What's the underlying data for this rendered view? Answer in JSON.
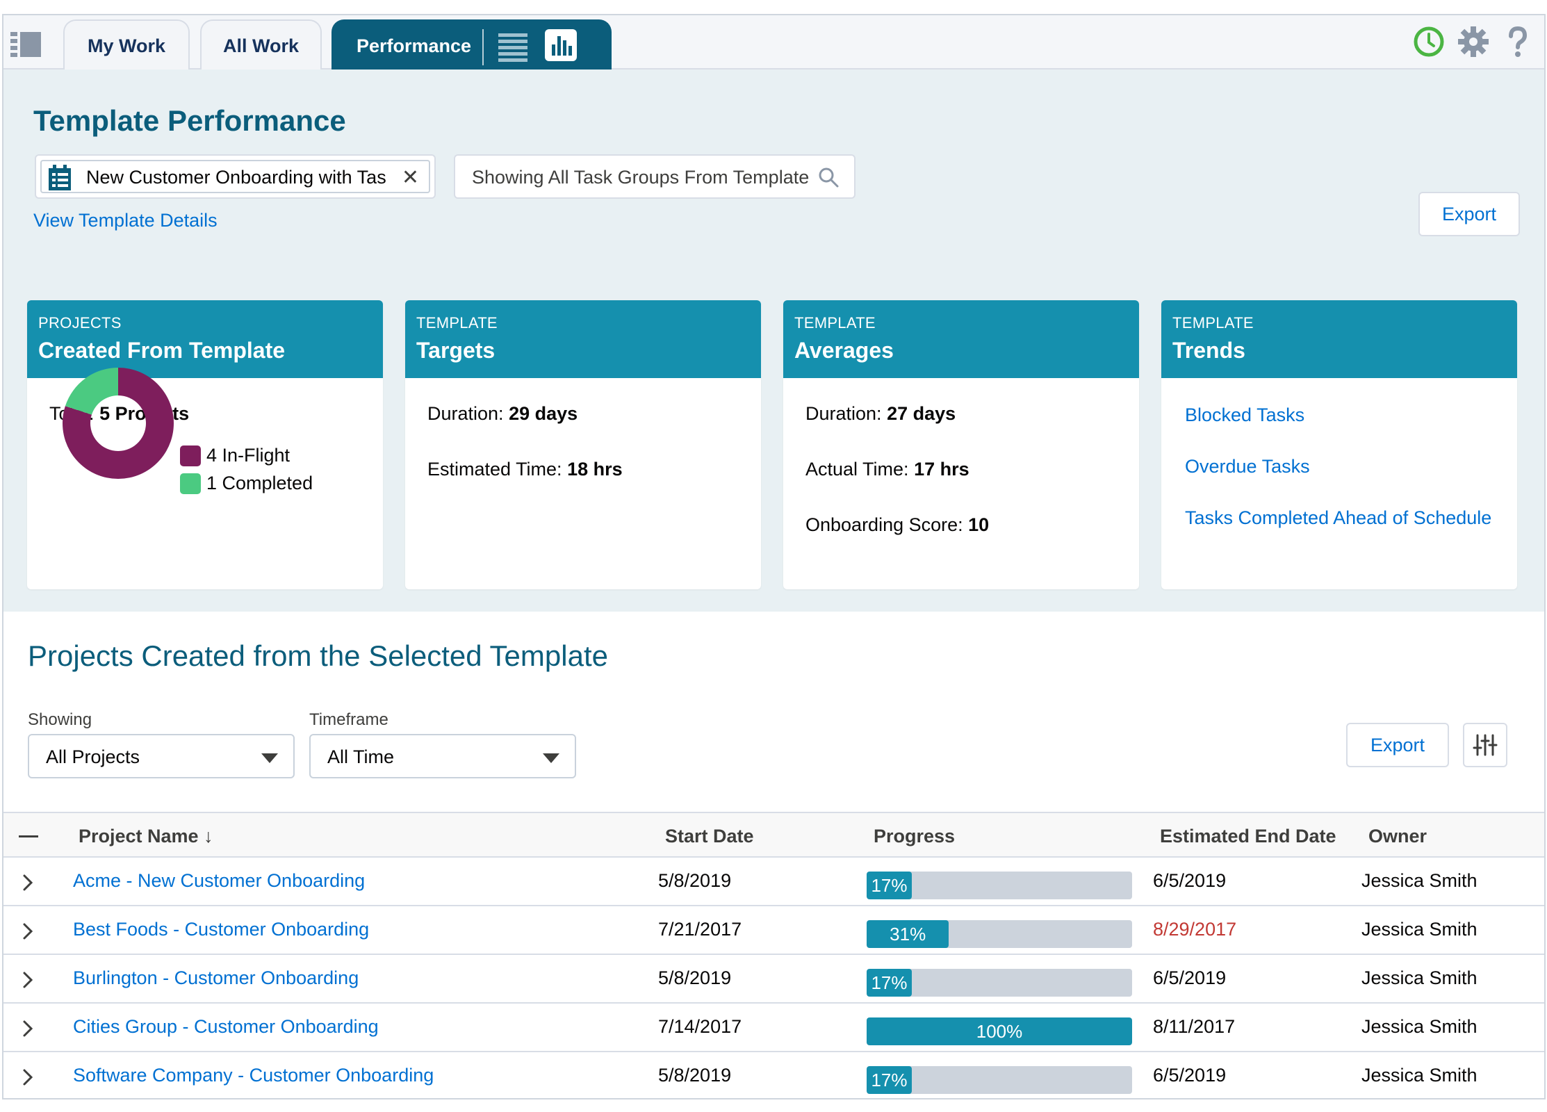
{
  "tabs": [
    {
      "label": "My Work"
    },
    {
      "label": "All Work"
    },
    {
      "label": "Performance"
    }
  ],
  "header": {
    "title": "Template Performance",
    "template_value": "New Customer Onboarding with Tas",
    "task_group_text": "Showing All Task Groups From Template",
    "view_details_link": "View Template Details",
    "export_label": "Export"
  },
  "cards": {
    "projects": {
      "kicker": "PROJECTS",
      "title": "Created From Template",
      "total_label": "Total:",
      "total_value": "5 Projects",
      "legend": [
        {
          "label": "4 In-Flight",
          "value": 4,
          "color": "#7e1e5c"
        },
        {
          "label": "1 Completed",
          "value": 1,
          "color": "#4bca81"
        }
      ]
    },
    "targets": {
      "kicker": "TEMPLATE",
      "title": "Targets",
      "duration_label": "Duration:",
      "duration_value": "29 days",
      "est_time_label": "Estimated Time:",
      "est_time_value": "18 hrs"
    },
    "averages": {
      "kicker": "TEMPLATE",
      "title": "Averages",
      "duration_label": "Duration:",
      "duration_value": "27 days",
      "actual_time_label": "Actual Time:",
      "actual_time_value": "17 hrs",
      "score_label": "Onboarding Score:",
      "score_value": "10"
    },
    "trends": {
      "kicker": "TEMPLATE",
      "title": "Trends",
      "links": [
        "Blocked Tasks",
        "Overdue Tasks",
        "Tasks Completed Ahead of Schedule"
      ]
    }
  },
  "projects_section": {
    "title": "Projects Created from the Selected Template",
    "showing_label": "Showing",
    "showing_value": "All Projects",
    "timeframe_label": "Timeframe",
    "timeframe_value": "All Time",
    "export_label": "Export"
  },
  "table": {
    "columns": [
      "Project Name ↓",
      "Start Date",
      "Progress",
      "Estimated End Date",
      "Owner"
    ],
    "rows": [
      {
        "name": "Acme - New Customer Onboarding",
        "start": "5/8/2019",
        "progress": 17,
        "progress_label": "17%",
        "end": "6/5/2019",
        "overdue": false,
        "owner": "Jessica Smith"
      },
      {
        "name": "Best Foods - Customer Onboarding",
        "start": "7/21/2017",
        "progress": 31,
        "progress_label": "31%",
        "end": "8/29/2017",
        "overdue": true,
        "owner": "Jessica Smith"
      },
      {
        "name": "Burlington - Customer Onboarding",
        "start": "5/8/2019",
        "progress": 17,
        "progress_label": "17%",
        "end": "6/5/2019",
        "overdue": false,
        "owner": "Jessica Smith"
      },
      {
        "name": "Cities Group - Customer Onboarding",
        "start": "7/14/2017",
        "progress": 100,
        "progress_label": "100%",
        "end": "8/11/2017",
        "overdue": false,
        "owner": "Jessica Smith"
      },
      {
        "name": "Software Company - Customer Onboarding",
        "start": "5/8/2019",
        "progress": 17,
        "progress_label": "17%",
        "end": "6/5/2019",
        "overdue": false,
        "owner": "Jessica Smith"
      }
    ]
  },
  "icons": {
    "app_launcher": "app-launcher-icon",
    "clock": "clock-icon",
    "settings": "gear-icon",
    "help": "help-icon",
    "list_view": "list-view-icon",
    "chart_view": "bar-chart-icon"
  }
}
